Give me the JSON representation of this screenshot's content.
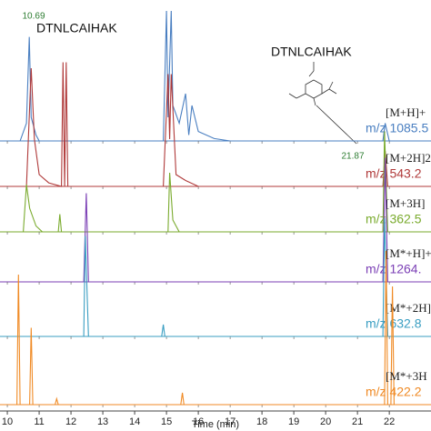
{
  "chart_data": {
    "type": "line",
    "xlabel": "Time (min)",
    "xlim": [
      9.77,
      23.31
    ],
    "xticks": [
      10,
      11,
      12,
      13,
      14,
      15,
      16,
      17,
      18,
      19,
      20,
      21,
      22
    ],
    "annotations": [
      "10.69",
      "DTNLCAIHAK",
      "DTNLCAIHAK",
      "21.87"
    ],
    "series": [
      {
        "name": "[M+H]+",
        "mz": "m/z 1085.5",
        "color": "#4a7fc1",
        "x": [
          10.4,
          10.6,
          10.69,
          10.75,
          10.9,
          11,
          14.9,
          15.0,
          15.05,
          15.15,
          15.2,
          15.4,
          15.6,
          15.7,
          15.8,
          16,
          16.5,
          17,
          21.8,
          21.87,
          22
        ],
        "values": [
          0,
          15,
          88,
          20,
          5,
          0,
          0,
          110,
          20,
          110,
          30,
          15,
          40,
          5,
          30,
          8,
          2,
          0,
          0,
          15,
          0
        ]
      },
      {
        "name": "[M+2H]2",
        "mz": "m/z 543.2",
        "color": "#b03a3a",
        "x": [
          10.6,
          10.75,
          10.85,
          11,
          11.3,
          11.7,
          11.75,
          11.8,
          11.85,
          11.9,
          14.9,
          15.05,
          15.1,
          15.15,
          15.3,
          15.6,
          16,
          21.8,
          21.87,
          21.95
        ],
        "values": [
          0,
          100,
          40,
          10,
          3,
          0,
          105,
          0,
          105,
          0,
          0,
          95,
          40,
          95,
          10,
          5,
          0,
          0,
          30,
          0
        ]
      },
      {
        "name": "[M+3H]",
        "mz": "m/z 362.5",
        "color": "#7aab2e",
        "x": [
          10.5,
          10.6,
          10.7,
          10.9,
          11.1,
          11.6,
          11.65,
          11.7,
          15.05,
          15.1,
          15.2,
          15.4,
          21.8,
          21.85,
          21.95
        ],
        "values": [
          0,
          40,
          20,
          5,
          0,
          0,
          15,
          0,
          0,
          50,
          10,
          0,
          0,
          85,
          0
        ]
      },
      {
        "name": "[M*+H]+",
        "mz": "m/z 1264.",
        "color": "#7b3fb5",
        "x": [
          12.4,
          12.48,
          12.55,
          21.8,
          21.87,
          21.95
        ],
        "values": [
          0,
          75,
          0,
          0,
          105,
          0
        ]
      },
      {
        "name": "[M*+2H]",
        "mz": "m/z 632.8",
        "color": "#3a9ec2",
        "x": [
          12.4,
          12.45,
          12.55,
          14.85,
          14.9,
          14.95,
          21.8,
          21.85,
          21.95
        ],
        "values": [
          0,
          85,
          0,
          0,
          10,
          0,
          0,
          100,
          0
        ]
      },
      {
        "name": "[M*+3H",
        "mz": "m/z 422.2",
        "color": "#f08a24",
        "x": [
          10.3,
          10.35,
          10.4,
          10.7,
          10.75,
          10.8,
          11.5,
          11.55,
          11.6,
          15.45,
          15.5,
          15.55,
          21.85,
          21.9,
          21.95,
          22.05,
          22.1,
          22.15
        ],
        "values": [
          0,
          110,
          0,
          0,
          65,
          0,
          0,
          5,
          0,
          0,
          10,
          0,
          0,
          130,
          0,
          0,
          100,
          0
        ]
      }
    ]
  }
}
